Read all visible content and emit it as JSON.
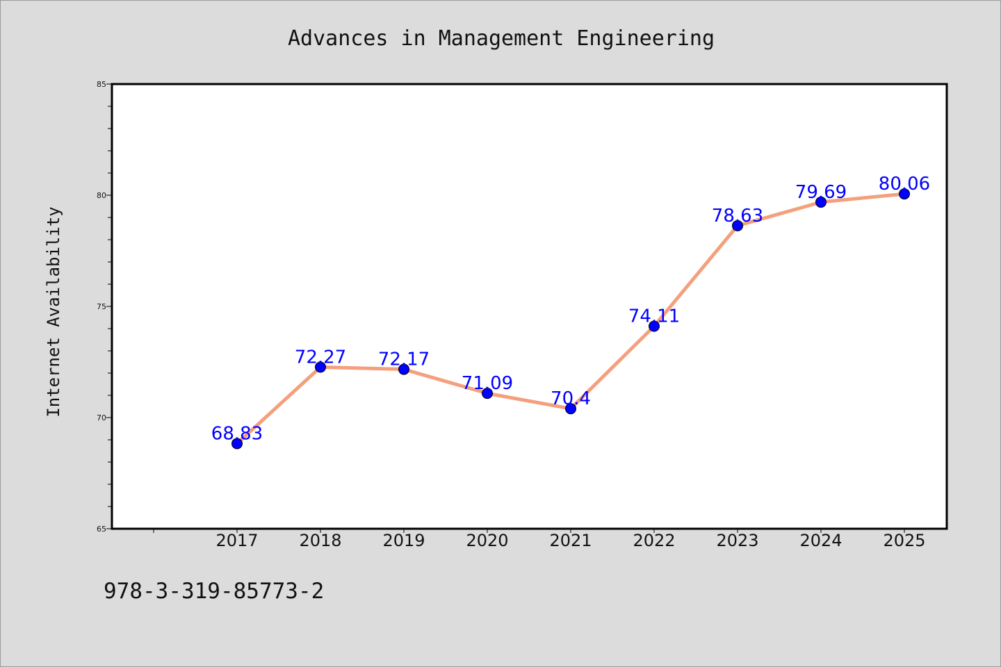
{
  "chart_data": {
    "type": "line",
    "title": "Advances in Management Engineering",
    "xlabel": "",
    "ylabel": "Internet Availability",
    "categories": [
      "2017",
      "2018",
      "2019",
      "2020",
      "2021",
      "2022",
      "2023",
      "2024",
      "2025"
    ],
    "series": [
      {
        "values": [
          68.83,
          72.27,
          72.17,
          71.09,
          70.4,
          74.11,
          78.63,
          79.69,
          80.06
        ],
        "labels": [
          "68.83",
          "72.27",
          "72.17",
          "71.09",
          "70.4",
          "74.11",
          "78.63",
          "79.69",
          "80.06"
        ],
        "line_color": "#f4a07c",
        "marker_color": "#0000ff"
      }
    ],
    "ylim": [
      65,
      85
    ],
    "yticks": [
      "65",
      "70",
      "75",
      "80",
      "85"
    ],
    "grid": false,
    "legend": "none"
  },
  "footer": {
    "isbn": "978-3-319-85773-2"
  },
  "colors": {
    "background": "#dcdcdc",
    "plot_background": "#ffffff"
  }
}
